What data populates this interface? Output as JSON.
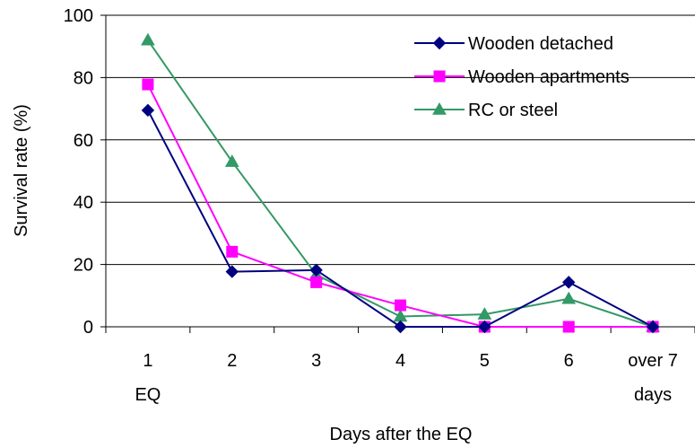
{
  "chart_data": {
    "type": "line",
    "title": "",
    "xlabel": "Days after the EQ",
    "ylabel": "Survival rate (%)",
    "categories": [
      "1",
      "2",
      "3",
      "4",
      "5",
      "6",
      "over 7"
    ],
    "category_sublabels": [
      "EQ",
      "",
      "",
      "",
      "",
      "",
      "days"
    ],
    "ylim": [
      0,
      100
    ],
    "yticks": [
      0,
      20,
      40,
      60,
      80,
      100
    ],
    "grid": "horizontal",
    "legend_position": "top-right",
    "series": [
      {
        "name": "Wooden detached",
        "color": "#000080",
        "marker": "diamond",
        "values": [
          69.5,
          17.7,
          18.2,
          0,
          0,
          14.3,
          0
        ]
      },
      {
        "name": "Wooden apartments",
        "color": "#FF00FF",
        "marker": "square",
        "values": [
          77.8,
          24.1,
          14.3,
          6.9,
          0,
          0,
          0
        ]
      },
      {
        "name": "RC or steel",
        "color": "#339966",
        "marker": "triangle",
        "values": [
          92,
          53,
          16.7,
          3.3,
          4,
          9,
          0
        ]
      }
    ]
  }
}
